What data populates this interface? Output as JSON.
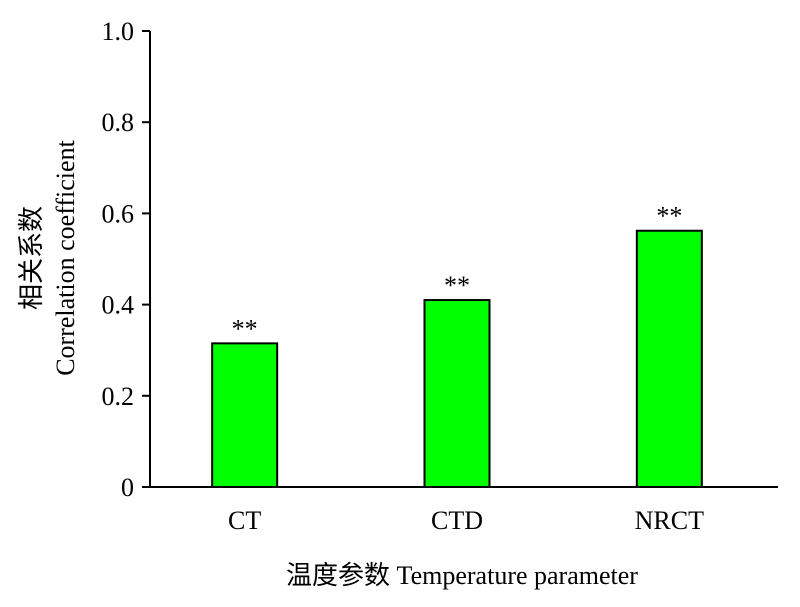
{
  "chart_data": {
    "type": "bar",
    "title": "",
    "xlabel": "温度参数 Temperature parameter",
    "ylabel_lines": [
      "相关系数",
      "Correlation coefficient"
    ],
    "categories": [
      "CT",
      "CTD",
      "NRCT"
    ],
    "values": [
      0.315,
      0.41,
      0.562
    ],
    "annotations": [
      "**",
      "**",
      "**"
    ],
    "ylim": [
      0,
      1.0
    ],
    "yticks": [
      0,
      0.2,
      0.4,
      0.6,
      0.8,
      1.0
    ],
    "ytick_labels": [
      "0",
      "0.2",
      "0.4",
      "0.6",
      "0.8",
      "1.0"
    ],
    "bar_color": "#00ff00",
    "grid": false,
    "legend": "none"
  }
}
